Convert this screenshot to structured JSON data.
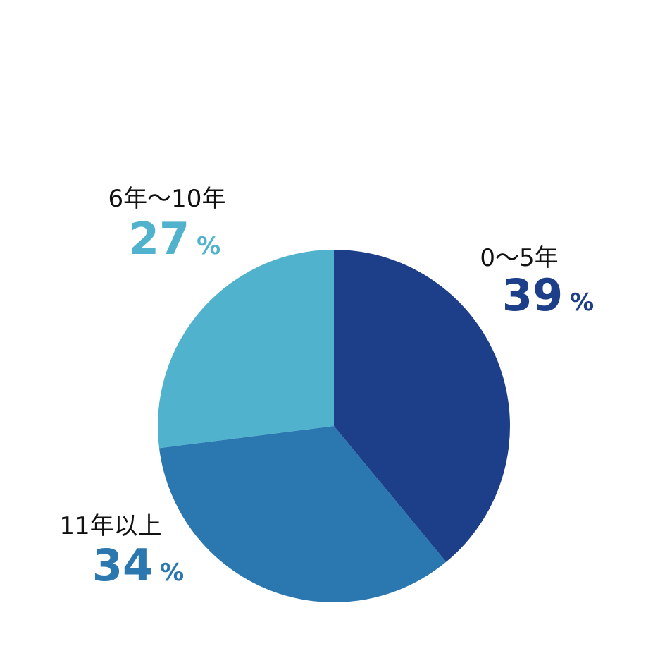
{
  "chart_data": {
    "type": "pie",
    "categories": [
      "0〜5年",
      "11年以上",
      "6年〜10年"
    ],
    "values": [
      39,
      34,
      27
    ],
    "colors": [
      "#1d3f8a",
      "#2b78b0",
      "#50b2cc"
    ],
    "value_suffix": "%"
  }
}
